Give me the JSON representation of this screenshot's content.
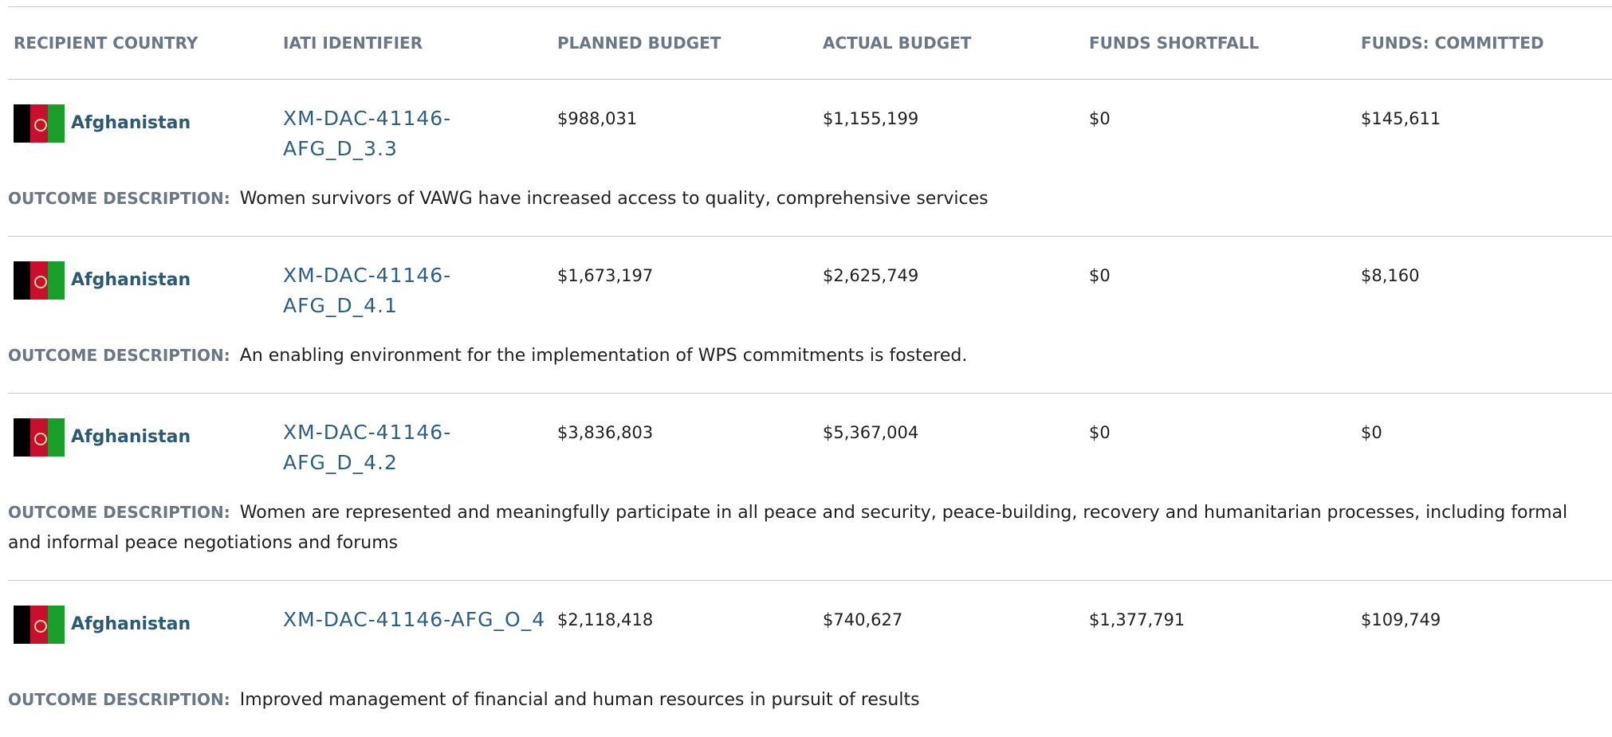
{
  "header": {
    "columns": [
      "RECIPIENT COUNTRY",
      "IATI IDENTIFIER",
      "PLANNED BUDGET",
      "ACTUAL BUDGET",
      "FUNDS SHORTFALL",
      "FUNDS: COMMITTED"
    ]
  },
  "outcome_label": "OUTCOME DESCRIPTION:",
  "rows": [
    {
      "country": "Afghanistan",
      "iati_identifier": "XM-DAC-41146-AFG_D_3.3",
      "planned_budget": "$988,031",
      "actual_budget": "$1,155,199",
      "funds_shortfall": "$0",
      "funds_committed": "$145,611",
      "outcome_description": "Women survivors of VAWG have increased access to quality, comprehensive services"
    },
    {
      "country": "Afghanistan",
      "iati_identifier": "XM-DAC-41146-AFG_D_4.1",
      "planned_budget": "$1,673,197",
      "actual_budget": "$2,625,749",
      "funds_shortfall": "$0",
      "funds_committed": "$8,160",
      "outcome_description": "An enabling environment for the implementation of WPS commitments is fostered."
    },
    {
      "country": "Afghanistan",
      "iati_identifier": "XM-DAC-41146-AFG_D_4.2",
      "planned_budget": "$3,836,803",
      "actual_budget": "$5,367,004",
      "funds_shortfall": "$0",
      "funds_committed": "$0",
      "outcome_description": "Women are represented and meaningfully participate in all peace and security, peace-building, recovery and humanitarian processes, including formal and informal peace negotiations and forums"
    },
    {
      "country": "Afghanistan",
      "iati_identifier": "XM-DAC-41146-AFG_O_4",
      "planned_budget": "$2,118,418",
      "actual_budget": "$740,627",
      "funds_shortfall": "$1,377,791",
      "funds_committed": "$109,749",
      "outcome_description": "Improved management of financial and human resources in pursuit of results"
    }
  ]
}
